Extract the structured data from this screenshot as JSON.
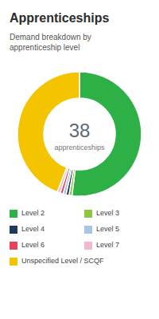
{
  "chart_data": {
    "type": "pie",
    "title": "Apprenticeships",
    "subtitle": "Demand breakdown by\napprenticeship level",
    "categories": [
      "Level 2",
      "Level 3",
      "Level 4",
      "Level 5",
      "Level 6",
      "Level 7",
      "Unspecified Level / SCQF"
    ],
    "values": [
      20,
      0.3,
      0.3,
      0.3,
      0.3,
      0.3,
      17
    ],
    "colors": [
      "#2db045",
      "#8dc63f",
      "#1e3a5f",
      "#a8c4e0",
      "#e8435a",
      "#f4b8c8",
      "#f5c400"
    ],
    "annotations": [
      "38",
      "apprenticeships"
    ],
    "legend": "bottom"
  }
}
